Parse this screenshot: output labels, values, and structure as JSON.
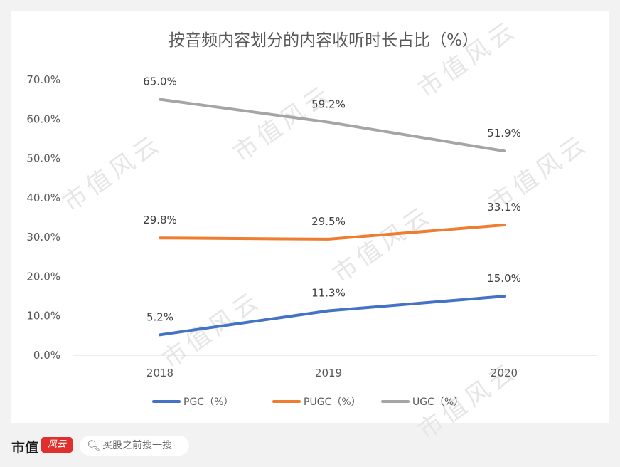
{
  "chart_data": {
    "type": "line",
    "title": "按音频内容划分的内容收听时长占比（%）",
    "categories": [
      "2018",
      "2019",
      "2020"
    ],
    "ylim": [
      0,
      70
    ],
    "yticks": [
      "0.0%",
      "10.0%",
      "20.0%",
      "30.0%",
      "40.0%",
      "50.0%",
      "60.0%",
      "70.0%"
    ],
    "grid": false,
    "legend_position": "bottom",
    "series": [
      {
        "name": "PGC（%）",
        "color": "#4472c4",
        "values": [
          5.2,
          11.3,
          15.0
        ],
        "labels": [
          "5.2%",
          "11.3%",
          "15.0%"
        ]
      },
      {
        "name": "PUGC（%）",
        "color": "#ed7d31",
        "values": [
          29.8,
          29.5,
          33.1
        ],
        "labels": [
          "29.8%",
          "29.5%",
          "33.1%"
        ]
      },
      {
        "name": "UGC（%）",
        "color": "#a5a5a5",
        "values": [
          65.0,
          59.2,
          51.9
        ],
        "labels": [
          "65.0%",
          "59.2%",
          "51.9%"
        ]
      }
    ]
  },
  "watermark": "市值风云",
  "footer": {
    "brand": "市值",
    "badge": "风云",
    "search_placeholder": "买股之前搜一搜"
  }
}
